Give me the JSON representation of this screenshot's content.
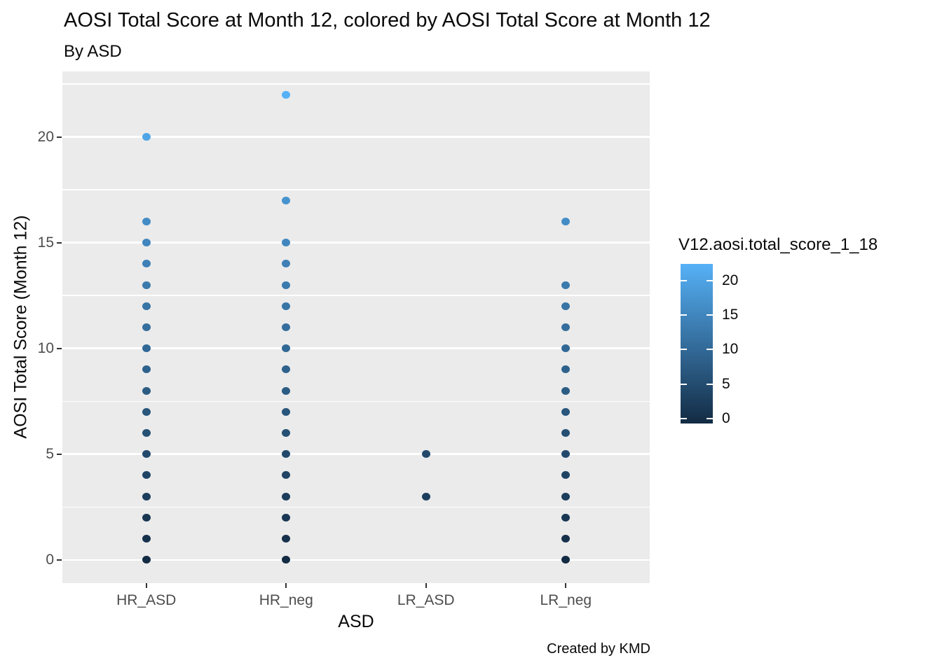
{
  "header": {
    "title": "AOSI Total Score at Month 12, colored by AOSI Total Score at Month 12",
    "subtitle": "By ASD"
  },
  "caption": "Created by KMD",
  "chart_data": {
    "type": "scatter",
    "title": "AOSI Total Score at Month 12, colored by AOSI Total Score at Month 12",
    "subtitle": "By ASD",
    "caption": "Created by KMD",
    "xlabel": "ASD",
    "ylabel": "AOSI Total Score (Month 12)",
    "categories": [
      "HR_ASD",
      "HR_neg",
      "LR_ASD",
      "LR_neg"
    ],
    "series": [
      {
        "category": "HR_ASD",
        "values": [
          0,
          1,
          2,
          3,
          4,
          5,
          6,
          7,
          8,
          9,
          10,
          11,
          12,
          13,
          14,
          15,
          16,
          20
        ]
      },
      {
        "category": "HR_neg",
        "values": [
          0,
          1,
          2,
          3,
          4,
          5,
          6,
          7,
          8,
          9,
          10,
          11,
          12,
          13,
          14,
          15,
          17,
          22
        ]
      },
      {
        "category": "LR_ASD",
        "values": [
          3,
          5
        ]
      },
      {
        "category": "LR_neg",
        "values": [
          0,
          1,
          2,
          3,
          4,
          5,
          6,
          7,
          8,
          9,
          10,
          11,
          12,
          13,
          16
        ]
      }
    ],
    "y_ticks": [
      0,
      5,
      10,
      15,
      20
    ],
    "y_minor_ticks": [
      2.5,
      7.5,
      12.5,
      17.5,
      22.5
    ],
    "ylim": [
      -1.1,
      23.1
    ],
    "grid": true,
    "panel_bg": "#EBEBEB",
    "grid_color": "#FFFFFF",
    "legend_position": "right",
    "color_scale": {
      "title": "V12.aosi.total_score_1_18",
      "low": "#132B43",
      "high": "#56B1F7",
      "domain": [
        0,
        22
      ],
      "ticks": [
        0,
        5,
        10,
        15,
        20
      ]
    }
  }
}
